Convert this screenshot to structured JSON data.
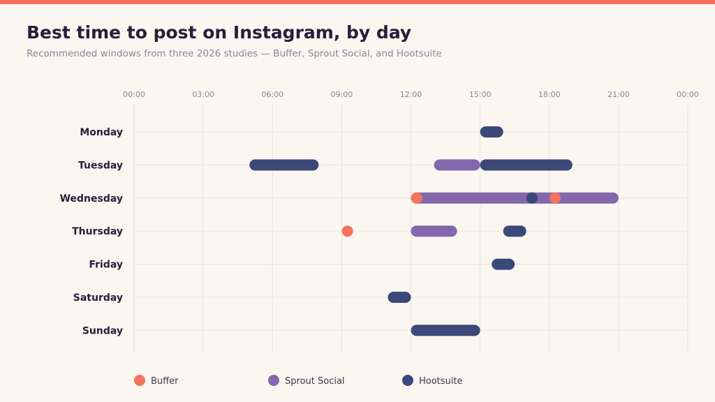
{
  "header": {
    "title": "Best time to post on Instagram, by day",
    "subtitle": "Recommended windows from three 2026 studies — Buffer, Sprout Social, and Hootsuite"
  },
  "chart_data": {
    "type": "range-bar",
    "x_ticks": [
      "00:00",
      "03:00",
      "06:00",
      "09:00",
      "12:00",
      "15:00",
      "18:00",
      "21:00",
      "00:00"
    ],
    "x_range_hours": [
      0,
      24
    ],
    "days": [
      "Monday",
      "Tuesday",
      "Wednesday",
      "Thursday",
      "Friday",
      "Saturday",
      "Sunday"
    ],
    "grid": true,
    "legend_position": "bottom",
    "series": [
      {
        "name": "Buffer",
        "color": "#f4735e",
        "points": [
          {
            "day": "Wednesday",
            "hour": 12.25
          },
          {
            "day": "Wednesday",
            "hour": 18.25
          },
          {
            "day": "Thursday",
            "hour": 9.25
          }
        ],
        "ranges": []
      },
      {
        "name": "Sprout Social",
        "color": "#8468ad",
        "points": [],
        "ranges": [
          {
            "day": "Tuesday",
            "start": 13,
            "end": 15
          },
          {
            "day": "Wednesday",
            "start": 12,
            "end": 21
          },
          {
            "day": "Thursday",
            "start": 12,
            "end": 14
          }
        ]
      },
      {
        "name": "Hootsuite",
        "color": "#3b4878",
        "points": [
          {
            "day": "Wednesday",
            "hour": 17.25
          }
        ],
        "ranges": [
          {
            "day": "Monday",
            "start": 15,
            "end": 16
          },
          {
            "day": "Tuesday",
            "start": 5,
            "end": 8
          },
          {
            "day": "Tuesday",
            "start": 15,
            "end": 19
          },
          {
            "day": "Thursday",
            "start": 16,
            "end": 17
          },
          {
            "day": "Friday",
            "start": 15.5,
            "end": 16.5
          },
          {
            "day": "Saturday",
            "start": 11,
            "end": 12
          },
          {
            "day": "Sunday",
            "start": 12,
            "end": 15
          }
        ]
      }
    ]
  }
}
